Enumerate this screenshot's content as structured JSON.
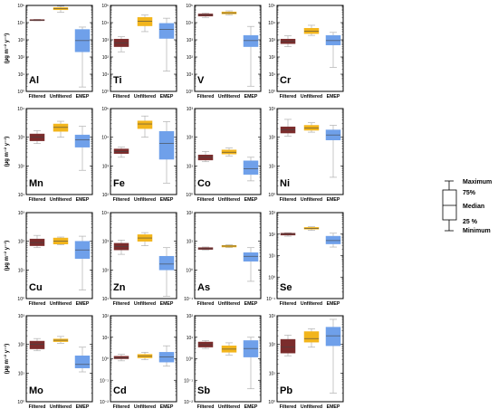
{
  "legend": {
    "labels": [
      "Maximum",
      "75%",
      "Median",
      "25 %",
      "Minimum"
    ]
  },
  "colors": {
    "Filtered": "#7b2c2c",
    "Unfiltered": "#f2b51c",
    "EMEP": "#6fa0ea",
    "whisker": "#b0b0b0",
    "frame": "#000000"
  },
  "chart_data": [
    {
      "type": "box",
      "title": "Al",
      "ylabel": "(µg m⁻² y⁻¹)",
      "categories": [
        "Filtered",
        "Unfiltered",
        "EMEP"
      ],
      "yscale": "log",
      "ylim": [
        1,
        100000
      ],
      "ytick_labels": [
        "10⁰",
        "10¹",
        "10²",
        "10³",
        "10⁴",
        "10⁵"
      ],
      "series": [
        {
          "name": "Filtered",
          "min": 13000,
          "q1": 13000,
          "median": 14000,
          "q3": 15000,
          "max": 15500
        },
        {
          "name": "Unfiltered",
          "min": 40000,
          "q1": 56000,
          "median": 66000,
          "q3": 75000,
          "max": 90000
        },
        {
          "name": "EMEP",
          "min": 1.8,
          "q1": 200,
          "median": 900,
          "q3": 4000,
          "max": 5500
        }
      ]
    },
    {
      "type": "box",
      "title": "Ti",
      "ylabel": "",
      "categories": [
        "Filtered",
        "Unfiltered",
        "EMEP"
      ],
      "yscale": "log",
      "ylim": [
        1,
        100000
      ],
      "ytick_labels": [
        "10⁰",
        "10¹",
        "10²",
        "10³",
        "10⁴",
        "10⁵"
      ],
      "series": [
        {
          "name": "Filtered",
          "min": 200,
          "q1": 400,
          "median": 650,
          "q3": 1100,
          "max": 1500
        },
        {
          "name": "Unfiltered",
          "min": 3000,
          "q1": 6500,
          "median": 12000,
          "q3": 20000,
          "max": 28000
        },
        {
          "name": "EMEP",
          "min": 15,
          "q1": 1200,
          "median": 4000,
          "q3": 9000,
          "max": 18000
        }
      ]
    },
    {
      "type": "box",
      "title": "V",
      "ylabel": "",
      "categories": [
        "Filtered",
        "Unfiltered",
        "EMEP"
      ],
      "yscale": "log",
      "ylim": [
        1,
        100000
      ],
      "ytick_labels": [
        "10⁰",
        "10¹",
        "10²",
        "10³",
        "10⁴",
        "10⁵"
      ],
      "series": [
        {
          "name": "Filtered",
          "min": 20000,
          "q1": 24000,
          "median": 28000,
          "q3": 32000,
          "max": 36000
        },
        {
          "name": "Unfiltered",
          "min": 28000,
          "q1": 32000,
          "median": 37000,
          "q3": 42000,
          "max": 48000
        },
        {
          "name": "EMEP",
          "min": 2,
          "q1": 400,
          "median": 900,
          "q3": 1800,
          "max": 6000
        }
      ]
    },
    {
      "type": "box",
      "title": "Cr",
      "ylabel": "",
      "categories": [
        "Filtered",
        "Unfiltered",
        "EMEP"
      ],
      "yscale": "log",
      "ylim": [
        1,
        100000
      ],
      "ytick_labels": [
        "10⁰",
        "10¹",
        "10²",
        "10³",
        "10⁴",
        "10⁵"
      ],
      "series": [
        {
          "name": "Filtered",
          "min": 400,
          "q1": 600,
          "median": 800,
          "q3": 1100,
          "max": 1700
        },
        {
          "name": "Unfiltered",
          "min": 1800,
          "q1": 2300,
          "median": 3200,
          "q3": 4700,
          "max": 7000
        },
        {
          "name": "EMEP",
          "min": 25,
          "q1": 500,
          "median": 900,
          "q3": 1800,
          "max": 2700
        }
      ]
    },
    {
      "type": "box",
      "title": "Mn",
      "ylabel": "(µg m⁻² y⁻¹)",
      "categories": [
        "Filtered",
        "Unfiltered",
        "EMEP"
      ],
      "yscale": "log",
      "ylim": [
        10,
        10000
      ],
      "ytick_labels": [
        "10¹",
        "10²",
        "10³",
        "10⁴"
      ],
      "series": [
        {
          "name": "Filtered",
          "min": 600,
          "q1": 750,
          "median": 1000,
          "q3": 1300,
          "max": 1700
        },
        {
          "name": "Unfiltered",
          "min": 1000,
          "q1": 1600,
          "median": 2200,
          "q3": 2900,
          "max": 3600
        },
        {
          "name": "EMEP",
          "min": 70,
          "q1": 450,
          "median": 800,
          "q3": 1200,
          "max": 2400
        }
      ]
    },
    {
      "type": "box",
      "title": "Fe",
      "ylabel": "",
      "categories": [
        "Filtered",
        "Unfiltered",
        "EMEP"
      ],
      "yscale": "log",
      "ylim": [
        100,
        100000
      ],
      "ytick_labels": [
        "10²",
        "10³",
        "10⁴",
        "10⁵"
      ],
      "series": [
        {
          "name": "Filtered",
          "min": 2000,
          "q1": 2700,
          "median": 3200,
          "q3": 3900,
          "max": 4500
        },
        {
          "name": "Unfiltered",
          "min": 10000,
          "q1": 20000,
          "median": 29000,
          "q3": 37000,
          "max": 55000
        },
        {
          "name": "EMEP",
          "min": 250,
          "q1": 1700,
          "median": 6000,
          "q3": 16000,
          "max": 35000
        }
      ]
    },
    {
      "type": "box",
      "title": "Co",
      "ylabel": "",
      "categories": [
        "Filtered",
        "Unfiltered",
        "EMEP"
      ],
      "yscale": "log",
      "ylim": [
        1,
        1000
      ],
      "ytick_labels": [
        "10⁰",
        "10¹",
        "10²",
        "10³"
      ],
      "series": [
        {
          "name": "Filtered",
          "min": 14,
          "q1": 16,
          "median": 20,
          "q3": 24,
          "max": 32
        },
        {
          "name": "Unfiltered",
          "min": 22,
          "q1": 26,
          "median": 30,
          "q3": 36,
          "max": 42
        },
        {
          "name": "EMEP",
          "min": 3,
          "q1": 5,
          "median": 8,
          "q3": 15,
          "max": 20
        }
      ]
    },
    {
      "type": "box",
      "title": "Ni",
      "ylabel": "",
      "categories": [
        "Filtered",
        "Unfiltered",
        "EMEP"
      ],
      "yscale": "log",
      "ylim": [
        1,
        1000
      ],
      "ytick_labels": [
        "10⁰",
        "10¹",
        "10²",
        "10³"
      ],
      "series": [
        {
          "name": "Filtered",
          "min": 110,
          "q1": 140,
          "median": 180,
          "q3": 230,
          "max": 420
        },
        {
          "name": "Unfiltered",
          "min": 150,
          "q1": 175,
          "median": 210,
          "q3": 260,
          "max": 320
        },
        {
          "name": "EMEP",
          "min": 4,
          "q1": 80,
          "median": 120,
          "q3": 180,
          "max": 260
        }
      ]
    },
    {
      "type": "box",
      "title": "Cu",
      "ylabel": "(µg m⁻² y⁻¹)",
      "categories": [
        "Filtered",
        "Unfiltered",
        "EMEP"
      ],
      "yscale": "log",
      "ylim": [
        1,
        1000
      ],
      "ytick_labels": [
        "10⁰",
        "10¹",
        "10²",
        "10³"
      ],
      "series": [
        {
          "name": "Filtered",
          "min": 60,
          "q1": 70,
          "median": 90,
          "q3": 120,
          "max": 160
        },
        {
          "name": "Unfiltered",
          "min": 75,
          "q1": 80,
          "median": 100,
          "q3": 130,
          "max": 140
        },
        {
          "name": "EMEP",
          "min": 2,
          "q1": 25,
          "median": 50,
          "q3": 100,
          "max": 150
        }
      ]
    },
    {
      "type": "box",
      "title": "Zn",
      "ylabel": "",
      "categories": [
        "Filtered",
        "Unfiltered",
        "EMEP"
      ],
      "yscale": "log",
      "ylim": [
        10,
        10000
      ],
      "ytick_labels": [
        "10¹",
        "10²",
        "10³",
        "10⁴"
      ],
      "series": [
        {
          "name": "Filtered",
          "min": 350,
          "q1": 500,
          "median": 650,
          "q3": 850,
          "max": 1100
        },
        {
          "name": "Unfiltered",
          "min": 700,
          "q1": 1000,
          "median": 1300,
          "q3": 1700,
          "max": 2000
        },
        {
          "name": "EMEP",
          "min": 12,
          "q1": 100,
          "median": 160,
          "q3": 300,
          "max": 600
        }
      ]
    },
    {
      "type": "box",
      "title": "As",
      "ylabel": "",
      "categories": [
        "Filtered",
        "Unfiltered",
        "EMEP"
      ],
      "yscale": "log",
      "ylim": [
        0.1,
        100
      ],
      "ytick_labels": [
        "10⁻¹",
        "10⁰",
        "10¹",
        "10²"
      ],
      "series": [
        {
          "name": "Filtered",
          "min": 5,
          "q1": 5.2,
          "median": 5.5,
          "q3": 6,
          "max": 6.3
        },
        {
          "name": "Unfiltered",
          "min": 6,
          "q1": 6.3,
          "median": 6.8,
          "q3": 7.2,
          "max": 7.5
        },
        {
          "name": "EMEP",
          "min": 0.4,
          "q1": 2,
          "median": 3,
          "q3": 4,
          "max": 6
        }
      ]
    },
    {
      "type": "box",
      "title": "Se",
      "ylabel": "",
      "categories": [
        "Filtered",
        "Unfiltered",
        "EMEP"
      ],
      "yscale": "log",
      "ylim": [
        0.1,
        1000
      ],
      "ytick_labels": [
        "10⁻¹",
        "10⁰",
        "10¹",
        "10²",
        "10³"
      ],
      "series": [
        {
          "name": "Filtered",
          "min": 80,
          "q1": 90,
          "median": 100,
          "q3": 110,
          "max": 115
        },
        {
          "name": "Unfiltered",
          "min": 150,
          "q1": 170,
          "median": 185,
          "q3": 205,
          "max": 220
        },
        {
          "name": "EMEP",
          "min": 25,
          "q1": 35,
          "median": 50,
          "q3": 80,
          "max": 110
        }
      ]
    },
    {
      "type": "box",
      "title": "Mo",
      "ylabel": "(µg m⁻² y⁻¹)",
      "categories": [
        "Filtered",
        "Unfiltered",
        "EMEP"
      ],
      "yscale": "log",
      "ylim": [
        1,
        1000
      ],
      "ytick_labels": [
        "10⁰",
        "10¹",
        "10²",
        "10³"
      ],
      "series": [
        {
          "name": "Filtered",
          "min": 60,
          "q1": 70,
          "median": 100,
          "q3": 130,
          "max": 160
        },
        {
          "name": "Unfiltered",
          "min": 110,
          "q1": 125,
          "median": 140,
          "q3": 155,
          "max": 190
        },
        {
          "name": "EMEP",
          "min": 11,
          "q1": 15,
          "median": 20,
          "q3": 40,
          "max": 80
        }
      ]
    },
    {
      "type": "box",
      "title": "Cd",
      "ylabel": "",
      "categories": [
        "Filtered",
        "Unfiltered",
        "EMEP"
      ],
      "yscale": "log",
      "ylim": [
        0.01,
        100
      ],
      "ytick_labels": [
        "10⁻²",
        "10⁻¹",
        "10⁰",
        "10¹",
        "10²"
      ],
      "series": [
        {
          "name": "Filtered",
          "min": 0.8,
          "q1": 1,
          "median": 1.1,
          "q3": 1.3,
          "max": 1.6
        },
        {
          "name": "Unfiltered",
          "min": 0.9,
          "q1": 1.1,
          "median": 1.3,
          "q3": 1.6,
          "max": 2
        },
        {
          "name": "EMEP",
          "min": 0.45,
          "q1": 0.7,
          "median": 1.2,
          "q3": 2,
          "max": 4
        }
      ]
    },
    {
      "type": "box",
      "title": "Sb",
      "ylabel": "",
      "categories": [
        "Filtered",
        "Unfiltered",
        "EMEP"
      ],
      "yscale": "log",
      "ylim": [
        0.01,
        100
      ],
      "ytick_labels": [
        "10⁻²",
        "10⁻¹",
        "10⁰",
        "10¹",
        "10²"
      ],
      "series": [
        {
          "name": "Filtered",
          "min": 3,
          "q1": 3.5,
          "median": 4.5,
          "q3": 6,
          "max": 7
        },
        {
          "name": "Unfiltered",
          "min": 1.5,
          "q1": 2,
          "median": 2.8,
          "q3": 4,
          "max": 5.5
        },
        {
          "name": "EMEP",
          "min": 0.04,
          "q1": 1.2,
          "median": 3,
          "q3": 7,
          "max": 10
        }
      ]
    },
    {
      "type": "box",
      "title": "Pb",
      "ylabel": "",
      "categories": [
        "Filtered",
        "Unfiltered",
        "EMEP"
      ],
      "yscale": "log",
      "ylim": [
        1,
        1000
      ],
      "ytick_labels": [
        "10⁰",
        "10¹",
        "10²",
        "10³"
      ],
      "series": [
        {
          "name": "Filtered",
          "min": 40,
          "q1": 50,
          "median": 80,
          "q3": 150,
          "max": 210
        },
        {
          "name": "Unfiltered",
          "min": 80,
          "q1": 120,
          "median": 160,
          "q3": 280,
          "max": 350
        },
        {
          "name": "EMEP",
          "min": 2,
          "q1": 90,
          "median": 200,
          "q3": 400,
          "max": 750
        }
      ]
    }
  ]
}
